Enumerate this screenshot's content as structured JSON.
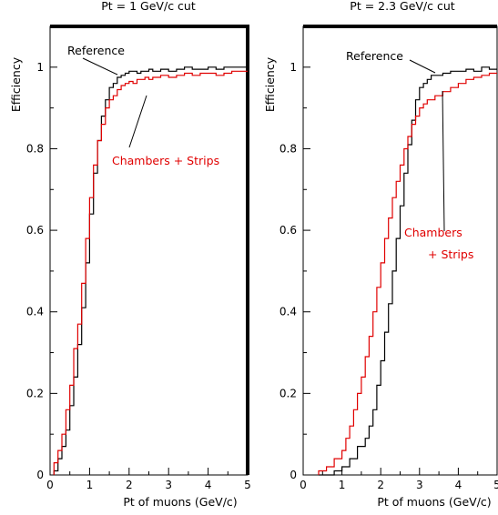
{
  "chart_data": [
    {
      "type": "line",
      "title": "Pt = 1 GeV/c cut",
      "xlabel": "Pt of muons (GeV/c)",
      "ylabel": "Efficiency",
      "xlim": [
        0,
        5
      ],
      "ylim": [
        0,
        1.1
      ],
      "xticks": [
        "0",
        "1",
        "2",
        "3",
        "4",
        "5"
      ],
      "yticks": [
        "0",
        "0.2",
        "0.4",
        "0.6",
        "0.8",
        "1"
      ],
      "annotations": [
        {
          "text": "Reference",
          "color": "#000000"
        },
        {
          "text": "Chambers + Strips",
          "color": "#e00000"
        }
      ],
      "series": [
        {
          "name": "Reference",
          "color": "#000000",
          "x": [
            0.2,
            0.3,
            0.4,
            0.5,
            0.6,
            0.7,
            0.8,
            0.9,
            1.0,
            1.1,
            1.2,
            1.3,
            1.4,
            1.5,
            1.6,
            1.7,
            1.8,
            1.9,
            2.0,
            2.1,
            2.2,
            2.3,
            2.4,
            2.5,
            2.6,
            2.8,
            3.0,
            3.2,
            3.4,
            3.6,
            3.8,
            4.0,
            4.2,
            4.4,
            4.6,
            4.8,
            5.0
          ],
          "y": [
            0.01,
            0.04,
            0.07,
            0.11,
            0.17,
            0.24,
            0.32,
            0.41,
            0.52,
            0.64,
            0.74,
            0.82,
            0.88,
            0.92,
            0.95,
            0.96,
            0.975,
            0.98,
            0.985,
            0.99,
            0.99,
            0.985,
            0.99,
            0.99,
            0.995,
            0.99,
            0.995,
            0.99,
            0.995,
            1.0,
            0.995,
            0.995,
            1.0,
            0.995,
            1.0,
            1.0,
            1.0
          ]
        },
        {
          "name": "Chambers + Strips",
          "color": "#e00000",
          "x": [
            0.2,
            0.3,
            0.4,
            0.5,
            0.6,
            0.7,
            0.8,
            0.9,
            1.0,
            1.1,
            1.2,
            1.3,
            1.4,
            1.5,
            1.6,
            1.7,
            1.8,
            1.9,
            2.0,
            2.1,
            2.2,
            2.3,
            2.4,
            2.5,
            2.6,
            2.8,
            3.0,
            3.2,
            3.4,
            3.6,
            3.8,
            4.0,
            4.2,
            4.4,
            4.6,
            4.8,
            5.0
          ],
          "y": [
            0.03,
            0.06,
            0.1,
            0.16,
            0.22,
            0.31,
            0.37,
            0.47,
            0.58,
            0.68,
            0.76,
            0.82,
            0.86,
            0.9,
            0.92,
            0.93,
            0.945,
            0.955,
            0.96,
            0.965,
            0.96,
            0.97,
            0.97,
            0.975,
            0.97,
            0.975,
            0.98,
            0.975,
            0.98,
            0.985,
            0.98,
            0.985,
            0.985,
            0.98,
            0.985,
            0.99,
            0.99
          ]
        }
      ]
    },
    {
      "type": "line",
      "title": "Pt = 2.3 GeV/c cut",
      "xlabel": "Pt of muons (GeV/c)",
      "ylabel": "Efficiency",
      "xlim": [
        0,
        5
      ],
      "ylim": [
        0,
        1.1
      ],
      "xticks": [
        "0",
        "1",
        "2",
        "3",
        "4",
        "5"
      ],
      "yticks": [
        "0",
        "0.2",
        "0.4",
        "0.6",
        "0.8",
        "1"
      ],
      "annotations": [
        {
          "text": "Reference",
          "color": "#000000"
        },
        {
          "text": "Chambers",
          "color": "#e00000"
        },
        {
          "text": "+ Strips",
          "color": "#e00000"
        }
      ],
      "series": [
        {
          "name": "Reference",
          "color": "#000000",
          "x": [
            0.6,
            0.8,
            1.0,
            1.2,
            1.4,
            1.6,
            1.7,
            1.8,
            1.9,
            2.0,
            2.1,
            2.2,
            2.3,
            2.4,
            2.5,
            2.6,
            2.7,
            2.8,
            2.9,
            3.0,
            3.1,
            3.2,
            3.3,
            3.4,
            3.6,
            3.8,
            4.0,
            4.2,
            4.4,
            4.6,
            4.8,
            5.0
          ],
          "y": [
            0.0,
            0.0,
            0.01,
            0.02,
            0.04,
            0.07,
            0.09,
            0.12,
            0.16,
            0.22,
            0.28,
            0.35,
            0.42,
            0.5,
            0.58,
            0.66,
            0.74,
            0.81,
            0.87,
            0.92,
            0.95,
            0.96,
            0.97,
            0.98,
            0.98,
            0.985,
            0.99,
            0.99,
            0.995,
            0.99,
            1.0,
            0.995
          ]
        },
        {
          "name": "Chambers + Strips",
          "color": "#e00000",
          "x": [
            0.6,
            0.8,
            1.0,
            1.1,
            1.2,
            1.3,
            1.4,
            1.5,
            1.6,
            1.7,
            1.8,
            1.9,
            2.0,
            2.1,
            2.2,
            2.3,
            2.4,
            2.5,
            2.6,
            2.7,
            2.8,
            2.9,
            3.0,
            3.1,
            3.2,
            3.4,
            3.6,
            3.8,
            4.0,
            4.2,
            4.4,
            4.6,
            4.8,
            5.0
          ],
          "y": [
            0.01,
            0.02,
            0.04,
            0.06,
            0.09,
            0.12,
            0.16,
            0.2,
            0.24,
            0.29,
            0.34,
            0.4,
            0.46,
            0.52,
            0.58,
            0.63,
            0.68,
            0.72,
            0.76,
            0.8,
            0.83,
            0.86,
            0.88,
            0.9,
            0.91,
            0.92,
            0.93,
            0.94,
            0.95,
            0.96,
            0.97,
            0.975,
            0.98,
            0.985
          ]
        }
      ]
    }
  ]
}
